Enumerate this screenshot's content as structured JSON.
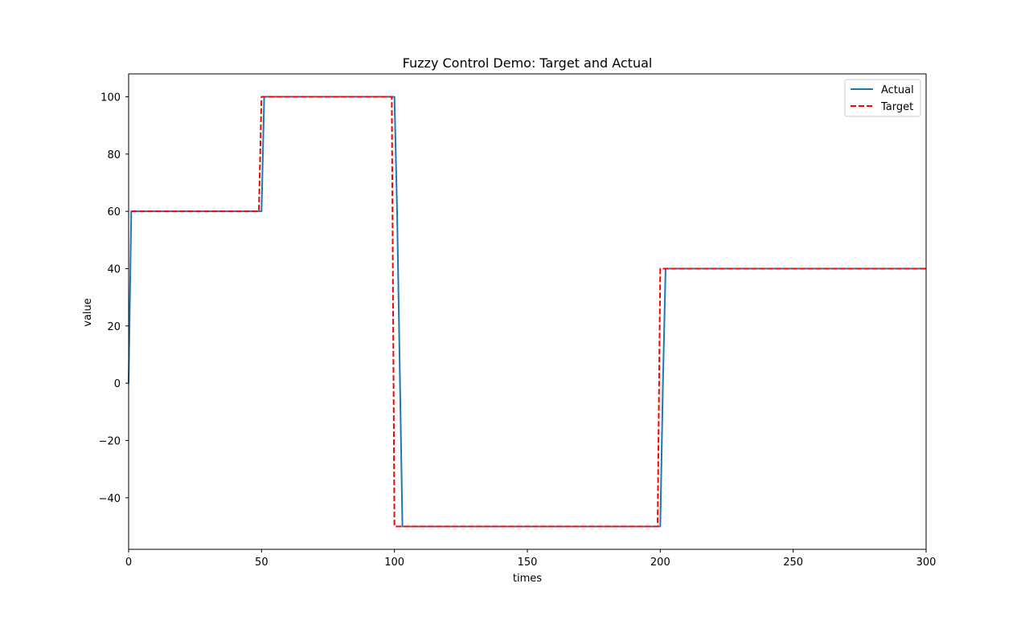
{
  "chart_data": {
    "type": "line",
    "title": "Fuzzy Control Demo: Target and Actual",
    "xlabel": "times",
    "ylabel": "value",
    "xlim": [
      0,
      300
    ],
    "ylim": [
      -58,
      108
    ],
    "xticks": [
      0,
      50,
      100,
      150,
      200,
      250,
      300
    ],
    "yticks": [
      -40,
      -20,
      0,
      20,
      40,
      60,
      80,
      100
    ],
    "xtick_labels": [
      "0",
      "50",
      "100",
      "150",
      "200",
      "250",
      "300"
    ],
    "ytick_labels": [
      "−40",
      "−20",
      "0",
      "20",
      "40",
      "60",
      "80",
      "100"
    ],
    "grid": false,
    "legend_position": "top-right",
    "series": [
      {
        "name": "Actual",
        "color": "#1f77b4",
        "style": "solid",
        "points": [
          [
            0,
            0
          ],
          [
            1,
            60
          ],
          [
            50,
            60
          ],
          [
            51,
            100
          ],
          [
            100,
            100
          ],
          [
            101,
            60
          ],
          [
            103,
            -50
          ],
          [
            200,
            -50
          ],
          [
            201,
            0
          ],
          [
            202,
            40
          ],
          [
            300,
            40
          ]
        ]
      },
      {
        "name": "Target",
        "color": "#ff0000",
        "style": "dashed",
        "points": [
          [
            1,
            60
          ],
          [
            49,
            60
          ],
          [
            50,
            100
          ],
          [
            99,
            100
          ],
          [
            100,
            -50
          ],
          [
            199,
            -50
          ],
          [
            200,
            40
          ],
          [
            300,
            40
          ]
        ]
      }
    ]
  }
}
